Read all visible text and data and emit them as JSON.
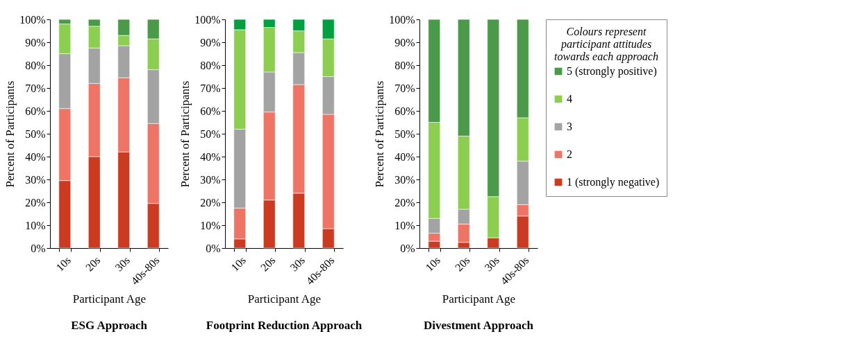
{
  "chart_data": [
    {
      "type": "bar",
      "title": "ESG Approach",
      "xlabel": "Participant Age",
      "ylabel": "Percent of Participants",
      "stacked": true,
      "legend": false,
      "categories": [
        "10s",
        "20s",
        "30s",
        "40s-80s"
      ],
      "ylim": [
        0,
        100
      ],
      "yticks": [
        {
          "value": 0,
          "label": "0%"
        },
        {
          "value": 10,
          "label": "10%"
        },
        {
          "value": 20,
          "label": "20%"
        },
        {
          "value": 30,
          "label": "30%"
        },
        {
          "value": 40,
          "label": "40%"
        },
        {
          "value": 50,
          "label": "50%"
        },
        {
          "value": 60,
          "label": "60%"
        },
        {
          "value": 70,
          "label": "70%"
        },
        {
          "value": 80,
          "label": "80%"
        },
        {
          "value": 90,
          "label": "90%"
        },
        {
          "value": 100,
          "label": "100%"
        }
      ],
      "series": [
        {
          "color": "#cc3a22",
          "values": [
            29.5,
            40,
            42,
            19.5
          ]
        },
        {
          "color": "#ee7565",
          "values": [
            31.5,
            32,
            32.5,
            35
          ]
        },
        {
          "color": "#a3a3a3",
          "values": [
            24,
            15.5,
            14,
            23.5
          ]
        },
        {
          "color": "#8ccf50",
          "values": [
            13,
            9.5,
            4.5,
            13.5
          ]
        },
        {
          "color": "#4a9a4a",
          "values": [
            2,
            3,
            7,
            8.5
          ]
        }
      ]
    },
    {
      "type": "bar",
      "title": "Footprint Reduction Approach",
      "xlabel": "Participant Age",
      "ylabel": "Percent of Participants",
      "stacked": true,
      "legend": false,
      "categories": [
        "10s",
        "20s",
        "30s",
        "40s-80s"
      ],
      "ylim": [
        0,
        100
      ],
      "yticks": [
        {
          "value": 0,
          "label": "0%"
        },
        {
          "value": 10,
          "label": "10%"
        },
        {
          "value": 20,
          "label": "20%"
        },
        {
          "value": 30,
          "label": "30%"
        },
        {
          "value": 40,
          "label": "40%"
        },
        {
          "value": 50,
          "label": "50%"
        },
        {
          "value": 60,
          "label": "60%"
        },
        {
          "value": 70,
          "label": "70%"
        },
        {
          "value": 80,
          "label": "80%"
        },
        {
          "value": 90,
          "label": "90%"
        },
        {
          "value": 100,
          "label": "100%"
        }
      ],
      "series": [
        {
          "color": "#cc3a22",
          "values": [
            4,
            21,
            24,
            8.5
          ]
        },
        {
          "color": "#ee7565",
          "values": [
            13.5,
            38.5,
            47.5,
            50
          ]
        },
        {
          "color": "#a3a3a3",
          "values": [
            34.5,
            17.5,
            14,
            16.5
          ]
        },
        {
          "color": "#8ccf50",
          "values": [
            43.5,
            19.5,
            9.5,
            16.5
          ]
        },
        {
          "color": "#00a040",
          "values": [
            4.5,
            3.5,
            5,
            8.5
          ]
        }
      ]
    },
    {
      "type": "bar",
      "title": "Divestment Approach",
      "xlabel": "Participant Age",
      "ylabel": "Percent of Participants",
      "stacked": true,
      "legend": "right",
      "legend_title": "Colours represent participant attitudes towards each approach",
      "categories": [
        "10s",
        "20s",
        "30s",
        "40s-80s"
      ],
      "ylim": [
        0,
        100
      ],
      "yticks": [
        {
          "value": 0,
          "label": "0%"
        },
        {
          "value": 10,
          "label": "10%"
        },
        {
          "value": 20,
          "label": "20%"
        },
        {
          "value": 30,
          "label": "30%"
        },
        {
          "value": 40,
          "label": "40%"
        },
        {
          "value": 50,
          "label": "50%"
        },
        {
          "value": 60,
          "label": "60%"
        },
        {
          "value": 70,
          "label": "70%"
        },
        {
          "value": 80,
          "label": "80%"
        },
        {
          "value": 90,
          "label": "90%"
        },
        {
          "value": 100,
          "label": "100%"
        }
      ],
      "series": [
        {
          "name": "1 (strongly negative)",
          "color": "#cc3a22",
          "values": [
            3,
            2.5,
            4.5,
            14
          ]
        },
        {
          "name": "2",
          "color": "#ee7565",
          "values": [
            3.5,
            8,
            null,
            5
          ]
        },
        {
          "name": "3",
          "color": "#a3a3a3",
          "values": [
            6.5,
            6.5,
            null,
            19
          ]
        },
        {
          "name": "4",
          "color": "#8ccf50",
          "values": [
            42,
            32,
            18,
            19
          ]
        },
        {
          "name": "5 (strongly positive)",
          "color": "#4a9a4a",
          "values": [
            45,
            51,
            77.5,
            43
          ]
        }
      ]
    }
  ]
}
